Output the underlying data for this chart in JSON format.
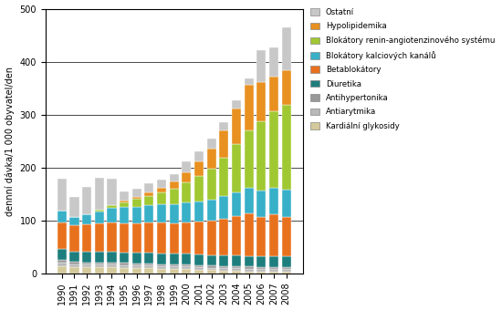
{
  "years": [
    1990,
    1991,
    1992,
    1993,
    1994,
    1995,
    1996,
    1997,
    1998,
    1999,
    2000,
    2001,
    2002,
    2003,
    2004,
    2005,
    2006,
    2007,
    2008
  ],
  "categories": [
    "Kardiální glykosidy",
    "Antiarytmika",
    "Antihypertonika",
    "Diuretika",
    "Betablokátory",
    "Blokátory kalciových kanálů",
    "Blokátory renin-angiotenzinového systému",
    "Hypolipidemika",
    "Ostatní"
  ],
  "colors": [
    "#d4c99a",
    "#b8b8b8",
    "#999999",
    "#1e7e7e",
    "#e8711e",
    "#38b0c8",
    "#a0c832",
    "#e89020",
    "#c8c8c8"
  ],
  "data": {
    "Kardiální glykosidy": [
      14,
      12,
      12,
      12,
      12,
      11,
      10,
      10,
      9,
      8,
      8,
      7,
      6,
      5,
      5,
      4,
      3,
      3,
      3
    ],
    "Antiarytmika": [
      6,
      5,
      5,
      5,
      5,
      5,
      5,
      5,
      5,
      5,
      5,
      5,
      5,
      5,
      5,
      5,
      5,
      5,
      5
    ],
    "Antihypertonika": [
      5,
      5,
      4,
      4,
      4,
      4,
      4,
      4,
      4,
      4,
      4,
      4,
      4,
      4,
      4,
      4,
      4,
      4,
      4
    ],
    "Diuretika": [
      22,
      20,
      20,
      20,
      20,
      20,
      20,
      20,
      20,
      20,
      20,
      20,
      20,
      20,
      20,
      20,
      20,
      20,
      20
    ],
    "Betablokátory": [
      50,
      50,
      52,
      53,
      55,
      55,
      55,
      57,
      58,
      58,
      60,
      62,
      65,
      70,
      75,
      80,
      75,
      80,
      75
    ],
    "Blokátory kalciových kanálů": [
      22,
      15,
      18,
      23,
      28,
      30,
      32,
      33,
      35,
      35,
      37,
      38,
      40,
      42,
      45,
      48,
      50,
      50,
      52
    ],
    "Blokátory renin-angiotenzinového systému": [
      0,
      0,
      0,
      3,
      5,
      10,
      15,
      18,
      22,
      30,
      38,
      48,
      58,
      72,
      90,
      110,
      130,
      145,
      160
    ],
    "Hypolipidemika": [
      0,
      0,
      0,
      0,
      0,
      2,
      4,
      6,
      9,
      13,
      19,
      27,
      38,
      53,
      68,
      85,
      75,
      65,
      65
    ],
    "Ostatní": [
      60,
      38,
      53,
      60,
      50,
      18,
      15,
      17,
      16,
      14,
      20,
      19,
      19,
      14,
      15,
      13,
      60,
      55,
      80
    ]
  },
  "ylabel": "dennní dávka/1 000 obyvatel/den",
  "ylim": [
    0,
    500
  ],
  "yticks": [
    0,
    100,
    200,
    300,
    400,
    500
  ],
  "background_color": "#ffffff",
  "bar_width": 0.75
}
